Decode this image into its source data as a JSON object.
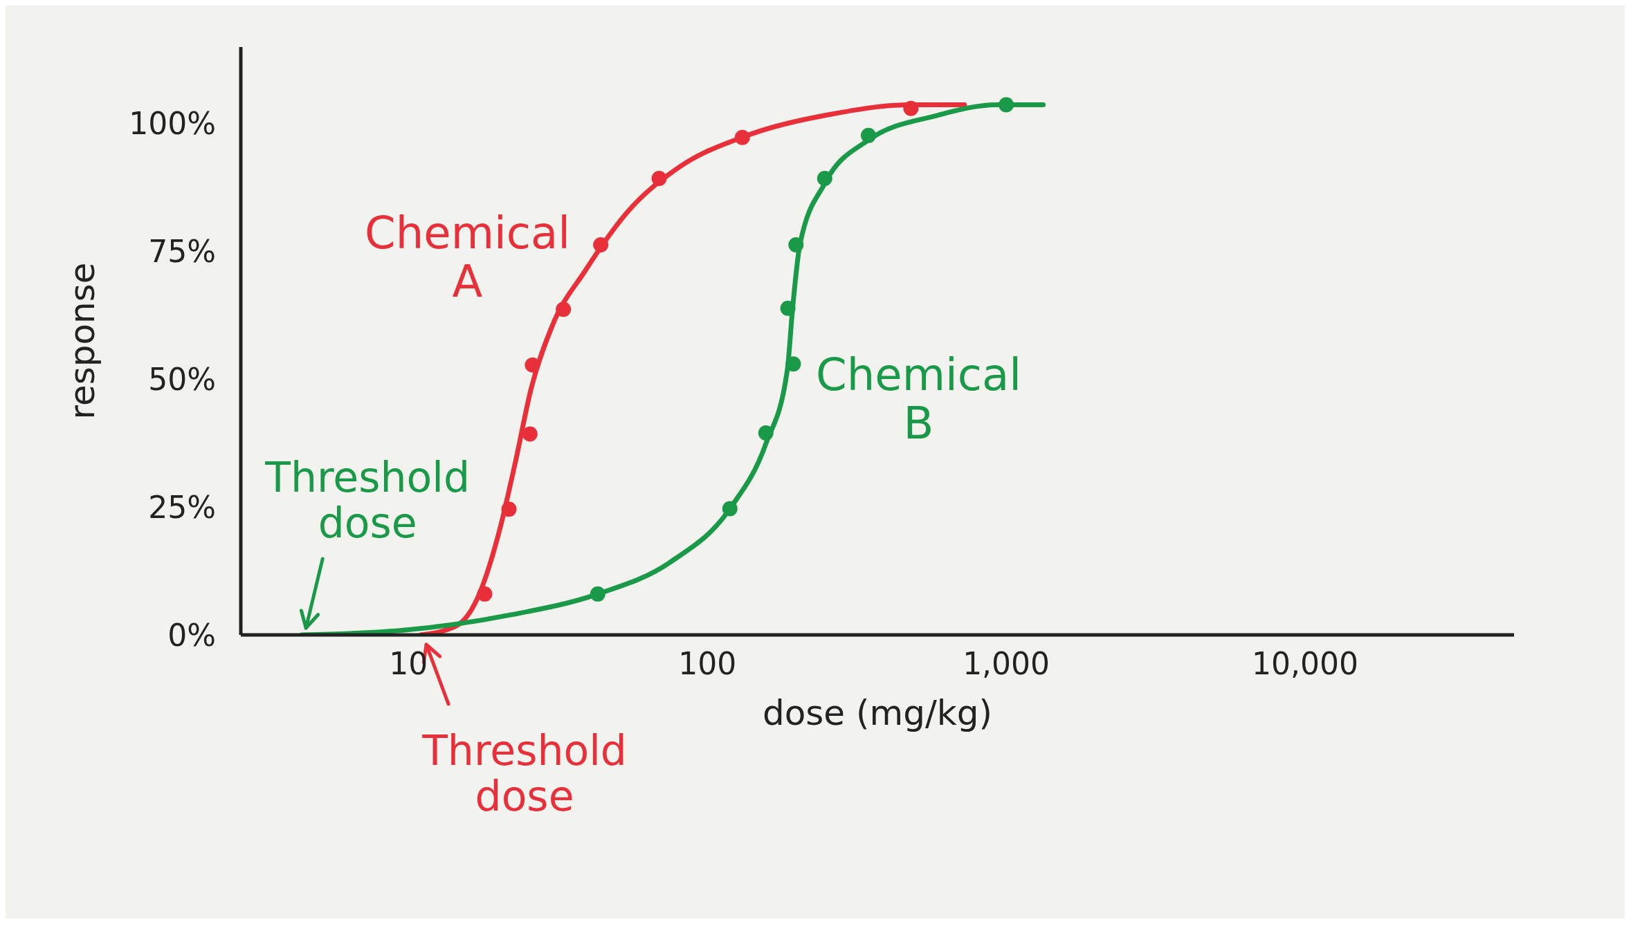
{
  "chart_data": {
    "type": "line",
    "xlabel": "dose (mg/kg)",
    "ylabel": "response",
    "log": "x",
    "xlim": [
      2.75,
      50000
    ],
    "xticks": [
      10,
      100,
      {
        "value": 1000,
        "label": "1,000"
      },
      {
        "value": 10000,
        "label": "10,000"
      }
    ],
    "ylim": [
      0,
      115
    ],
    "yticks": [
      {
        "value": 0,
        "label": "0%"
      },
      {
        "value": 25,
        "label": "25%"
      },
      {
        "value": 50,
        "label": "50%"
      },
      {
        "value": 75,
        "label": "75%"
      },
      {
        "value": 100,
        "label": "100%"
      }
    ],
    "grid": false,
    "legend": false,
    "line_style": "solid",
    "series": [
      {
        "name": "Chemical A",
        "color": "#e8303a",
        "x": [
          11,
          14.5,
          17,
          20,
          22.8,
          25.7,
          30.3,
          39,
          54,
          81,
          133,
          257,
          475,
          725
        ],
        "values": [
          0,
          1.8,
          7.1,
          19.6,
          33.8,
          48,
          60.5,
          71.2,
          82.7,
          91.6,
          97.5,
          101.8,
          103.7,
          103.7
        ]
      },
      {
        "type": "scatter",
        "color": "#e8303a",
        "marker": "circle",
        "x": [
          18,
          21.7,
          25.5,
          26,
          33,
          44,
          69,
          131,
          480
        ],
        "values": [
          8,
          24.6,
          39.3,
          52.8,
          63.7,
          76.3,
          89.3,
          97.3,
          103
        ]
      },
      {
        "name": "Chemical B",
        "color": "#1a9a48",
        "x": [
          4.4,
          9.6,
          21.9,
          43,
          75,
          119,
          157,
          185,
          193,
          204,
          247,
          346,
          585,
          930,
          1330
        ],
        "values": [
          0,
          0.9,
          3.9,
          8,
          14.2,
          24.7,
          37.4,
          51.6,
          64,
          76.3,
          88.3,
          96.8,
          101.6,
          103.7,
          103.7
        ]
      },
      {
        "type": "scatter",
        "color": "#1a9a48",
        "marker": "circle",
        "x": [
          43,
          119,
          157,
          194,
          186,
          198,
          247,
          346,
          1000
        ],
        "values": [
          8,
          24.7,
          39.5,
          53,
          63.9,
          76.3,
          89.3,
          97.7,
          103.7
        ]
      }
    ],
    "annotations": [
      {
        "text": "Threshold dose",
        "x": 4.4,
        "y": 0
      },
      {
        "text": "Threshold dose",
        "x": 11,
        "y": 0
      }
    ]
  }
}
